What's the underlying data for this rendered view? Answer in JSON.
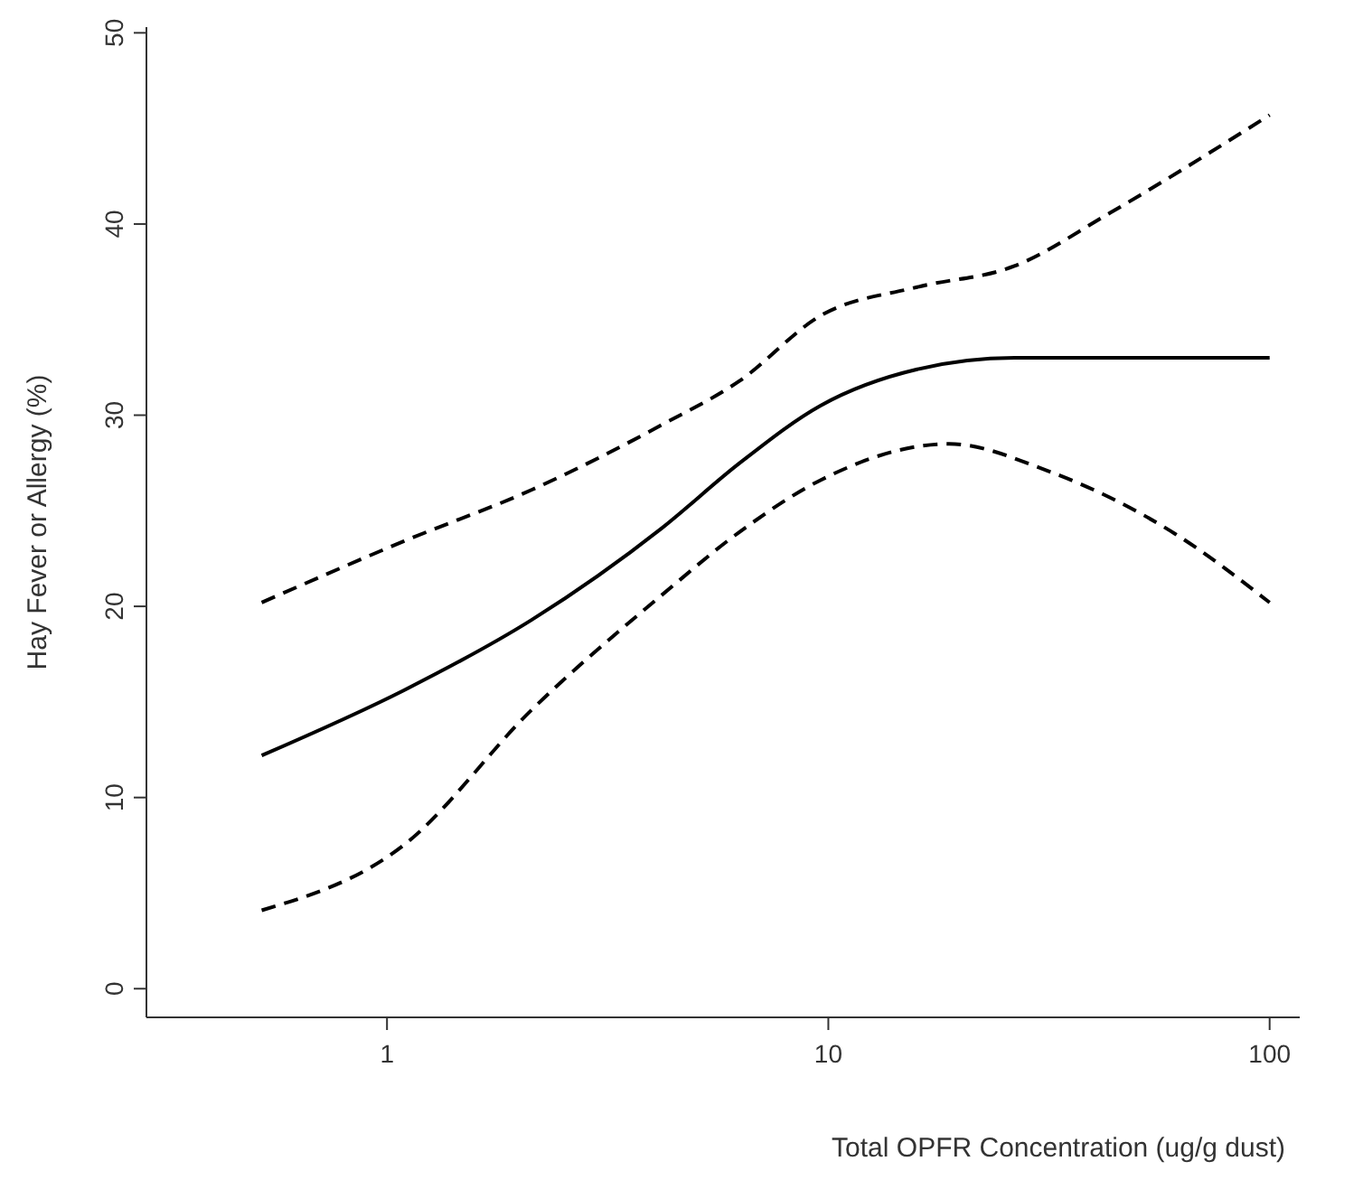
{
  "chart_data": {
    "type": "line",
    "xlabel": "Total OPFR Concentration (ug/g dust)",
    "ylabel": "Hay Fever or Allergy (%)",
    "log": "x",
    "xlim": [
      0.285,
      117
    ],
    "xticks": [
      1,
      10,
      100
    ],
    "ylim": [
      -1.5,
      50.3
    ],
    "yticks": [
      0,
      10,
      20,
      30,
      40,
      50
    ],
    "grid": false,
    "marker": "none",
    "series": [
      {
        "color": "#000000",
        "line_style": "solid",
        "x": [
          0.52,
          1.09,
          2.13,
          4.2,
          6.3,
          9.6,
          15.9,
          26.4,
          100
        ],
        "values": [
          12.2,
          15.6,
          19.3,
          24.1,
          27.5,
          30.5,
          32.4,
          33.0,
          33.0
        ]
      },
      {
        "color": "#000000",
        "line_style": "dashed",
        "x": [
          0.52,
          1.09,
          2.13,
          4.2,
          6.3,
          9.6,
          15.9,
          26.4,
          43.6,
          100
        ],
        "values": [
          20.2,
          23.4,
          26.1,
          29.5,
          31.8,
          35.2,
          36.7,
          37.8,
          40.6,
          45.7
        ]
      },
      {
        "color": "#000000",
        "line_style": "dashed",
        "x": [
          0.52,
          1.09,
          2.13,
          4.2,
          6.3,
          9.6,
          18.8,
          31.3,
          61,
          100
        ],
        "values": [
          4.1,
          7.5,
          14.6,
          20.6,
          23.9,
          26.6,
          28.5,
          27.1,
          23.8,
          20.2
        ]
      }
    ]
  }
}
